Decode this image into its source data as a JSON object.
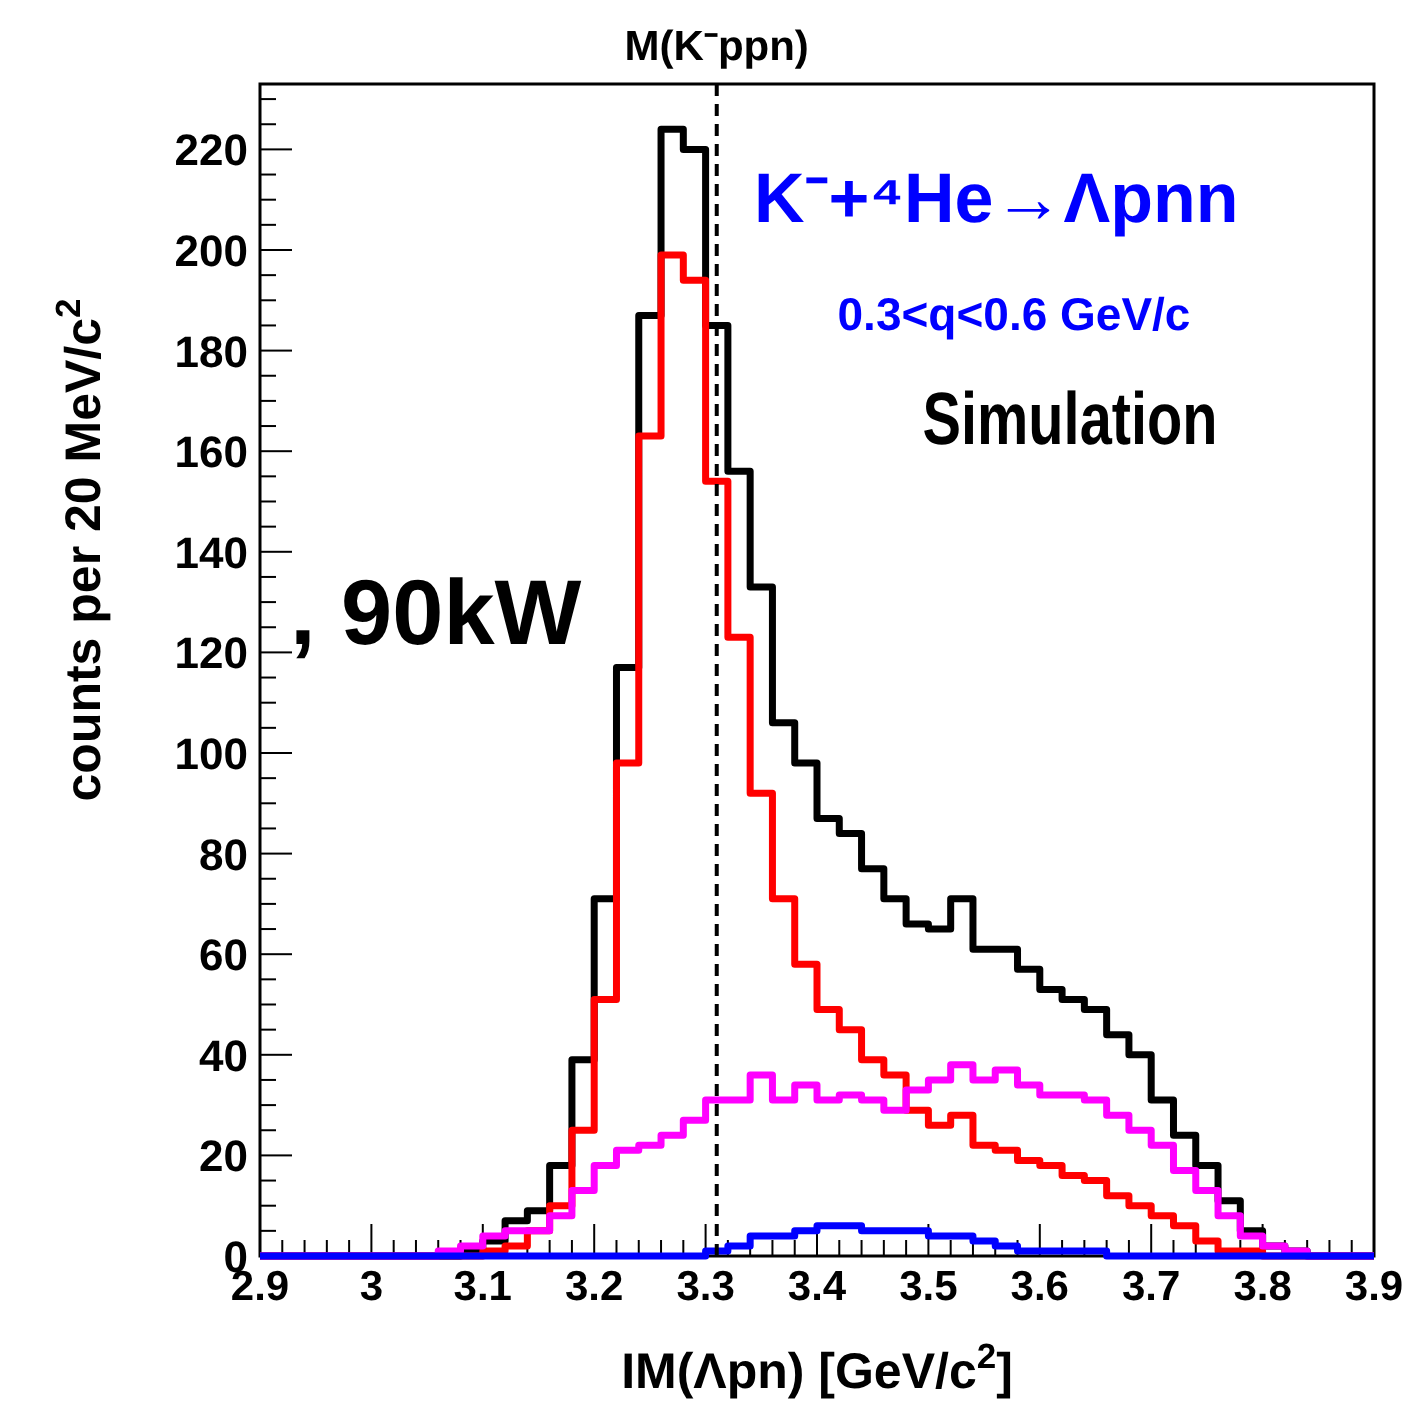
{
  "chart_data": {
    "type": "histogram",
    "xlabel": "IM(Λpn) [GeV/c$^{2}$]",
    "ylabel": "counts per 20 MeV/c$^{2}$",
    "bins": [
      2.9,
      2.92,
      2.94,
      2.96,
      2.98,
      3,
      3.02,
      3.04,
      3.06,
      3.08,
      3.1,
      3.12,
      3.14,
      3.16,
      3.18,
      3.2,
      3.22,
      3.24,
      3.26,
      3.28,
      3.3,
      3.32,
      3.34,
      3.36,
      3.38,
      3.4,
      3.42,
      3.44,
      3.46,
      3.48,
      3.5,
      3.52,
      3.54,
      3.56,
      3.58,
      3.6,
      3.62,
      3.64,
      3.66,
      3.68,
      3.7,
      3.72,
      3.74,
      3.76,
      3.78,
      3.8,
      3.82,
      3.84,
      3.86,
      3.88,
      3.9
    ],
    "series": [
      {
        "color": "#000000",
        "values": [
          0,
          0,
          0,
          0,
          0,
          0,
          0,
          0,
          0,
          1,
          3,
          7,
          9,
          18,
          39,
          71,
          117,
          187,
          224,
          220,
          185,
          156,
          133,
          106,
          98,
          87,
          84,
          77,
          71,
          66,
          65,
          71,
          61,
          61,
          57,
          53,
          51,
          49,
          44,
          40,
          31,
          24,
          18,
          11,
          5,
          2,
          1,
          0,
          0,
          0
        ]
      },
      {
        "color": "#ff0000",
        "values": [
          0,
          0,
          0,
          0,
          0,
          0,
          0,
          0,
          0,
          0,
          1,
          2,
          5,
          10,
          25,
          51,
          98,
          163,
          199,
          194,
          154,
          123,
          92,
          71,
          58,
          49,
          45,
          39,
          36,
          29,
          26,
          28,
          22,
          21,
          19,
          18,
          16,
          15,
          12,
          10,
          8,
          6,
          3,
          1,
          1,
          0,
          0,
          0,
          0,
          0
        ]
      },
      {
        "color": "#ff00ff",
        "values": [
          0,
          0,
          0,
          0,
          0,
          0,
          0,
          0,
          1,
          2,
          4,
          5,
          5,
          8,
          13,
          18,
          21,
          22,
          24,
          27,
          31,
          31,
          36,
          31,
          34,
          31,
          32,
          31,
          29,
          33,
          35,
          38,
          35,
          37,
          34,
          32,
          32,
          31,
          28,
          25,
          22,
          17,
          13,
          8,
          4,
          2,
          1,
          0,
          0,
          0
        ]
      },
      {
        "color": "#0000ff",
        "values": [
          0,
          0,
          0,
          0,
          0,
          0,
          0,
          0,
          0,
          0,
          0,
          0,
          0,
          0,
          0,
          0,
          0,
          0,
          0,
          0,
          1,
          2,
          4,
          4,
          5,
          6,
          6,
          5,
          5,
          5,
          4,
          4,
          3,
          2,
          1,
          1,
          1,
          1,
          0,
          0,
          0,
          0,
          0,
          0,
          0,
          0,
          0,
          0,
          0,
          0
        ]
      }
    ],
    "xlim": [
      2.9,
      3.9
    ],
    "ylim": [
      0,
      233
    ],
    "xticks": [
      2.9,
      {
        "value": 2.92,
        "label": null
      },
      {
        "value": 2.94,
        "label": null
      },
      {
        "value": 2.96,
        "label": null
      },
      {
        "value": 2.98,
        "label": null
      },
      3,
      {
        "value": 3.02,
        "label": null
      },
      {
        "value": 3.04,
        "label": null
      },
      {
        "value": 3.06,
        "label": null
      },
      {
        "value": 3.08,
        "label": null
      },
      3.1,
      {
        "value": 3.12,
        "label": null
      },
      {
        "value": 3.14,
        "label": null
      },
      {
        "value": 3.16,
        "label": null
      },
      {
        "value": 3.18,
        "label": null
      },
      3.2,
      {
        "value": 3.22,
        "label": null
      },
      {
        "value": 3.24,
        "label": null
      },
      {
        "value": 3.26,
        "label": null
      },
      {
        "value": 3.28,
        "label": null
      },
      3.3,
      {
        "value": 3.32,
        "label": null
      },
      {
        "value": 3.34,
        "label": null
      },
      {
        "value": 3.36,
        "label": null
      },
      {
        "value": 3.38,
        "label": null
      },
      3.4,
      {
        "value": 3.42,
        "label": null
      },
      {
        "value": 3.44,
        "label": null
      },
      {
        "value": 3.46,
        "label": null
      },
      {
        "value": 3.48,
        "label": null
      },
      3.5,
      {
        "value": 3.52,
        "label": null
      },
      {
        "value": 3.54,
        "label": null
      },
      {
        "value": 3.56,
        "label": null
      },
      {
        "value": 3.58,
        "label": null
      },
      3.6,
      {
        "value": 3.62,
        "label": null
      },
      {
        "value": 3.64,
        "label": null
      },
      {
        "value": 3.66,
        "label": null
      },
      {
        "value": 3.68,
        "label": null
      },
      3.7,
      {
        "value": 3.72,
        "label": null
      },
      {
        "value": 3.74,
        "label": null
      },
      {
        "value": 3.76,
        "label": null
      },
      {
        "value": 3.78,
        "label": null
      },
      3.8,
      {
        "value": 3.82,
        "label": null
      },
      {
        "value": 3.84,
        "label": null
      },
      {
        "value": 3.86,
        "label": null
      },
      {
        "value": 3.88,
        "label": null
      },
      3.9
    ],
    "yticks": [
      0,
      {
        "value": 5,
        "label": null
      },
      {
        "value": 10,
        "label": null
      },
      {
        "value": 15,
        "label": null
      },
      20,
      {
        "value": 25,
        "label": null
      },
      {
        "value": 30,
        "label": null
      },
      {
        "value": 35,
        "label": null
      },
      40,
      {
        "value": 45,
        "label": null
      },
      {
        "value": 50,
        "label": null
      },
      {
        "value": 55,
        "label": null
      },
      60,
      {
        "value": 65,
        "label": null
      },
      {
        "value": 70,
        "label": null
      },
      {
        "value": 75,
        "label": null
      },
      80,
      {
        "value": 85,
        "label": null
      },
      {
        "value": 90,
        "label": null
      },
      {
        "value": 95,
        "label": null
      },
      100,
      {
        "value": 105,
        "label": null
      },
      {
        "value": 110,
        "label": null
      },
      {
        "value": 115,
        "label": null
      },
      120,
      {
        "value": 125,
        "label": null
      },
      {
        "value": 130,
        "label": null
      },
      {
        "value": 135,
        "label": null
      },
      140,
      {
        "value": 145,
        "label": null
      },
      {
        "value": 150,
        "label": null
      },
      {
        "value": 155,
        "label": null
      },
      160,
      {
        "value": 165,
        "label": null
      },
      {
        "value": 170,
        "label": null
      },
      {
        "value": 175,
        "label": null
      },
      180,
      {
        "value": 185,
        "label": null
      },
      {
        "value": 190,
        "label": null
      },
      {
        "value": 195,
        "label": null
      },
      200,
      {
        "value": 205,
        "label": null
      },
      {
        "value": 210,
        "label": null
      },
      {
        "value": 215,
        "label": null
      },
      220,
      {
        "value": 225,
        "label": null
      },
      {
        "value": 230,
        "label": null
      }
    ],
    "ref_lines": [
      {
        "axis": "x",
        "value": 3.31,
        "label": "M(K⁻ppn)",
        "color": "#000000",
        "line_style": "dashed"
      }
    ],
    "annotations": [
      "K⁻+⁴He→Λpnn",
      "0.3<q<0.6 GeV/c",
      "Simulation",
      ", 90kW"
    ],
    "grid": false
  }
}
